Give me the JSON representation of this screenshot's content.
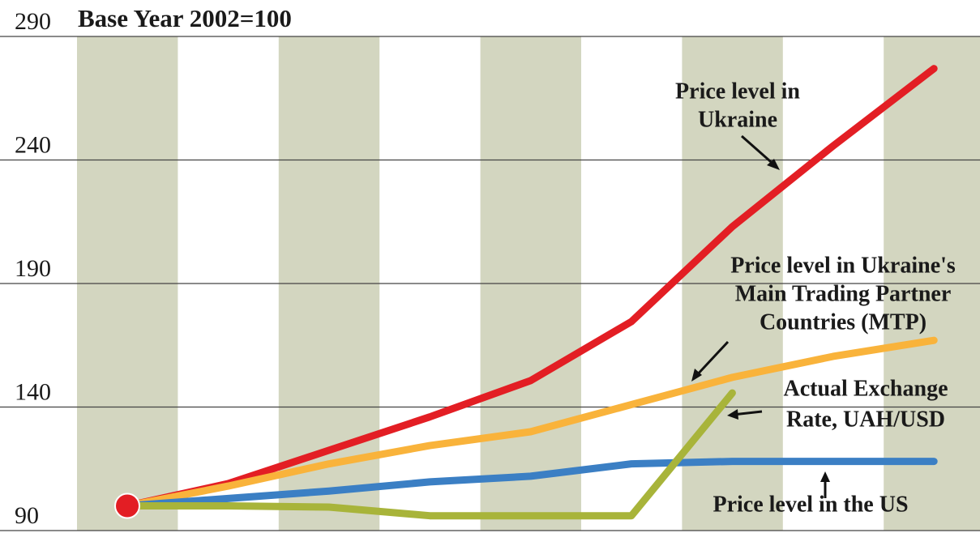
{
  "chart_data": {
    "type": "line",
    "title": "Base Year 2002=100",
    "categories": [
      null,
      null,
      null,
      null,
      null,
      null,
      null,
      null,
      null
    ],
    "series": [
      {
        "name": "Price level in Ukraine",
        "color": "#e31e24",
        "values": [
          100,
          109,
          122.5,
          136,
          150.7,
          174.6,
          213,
          245.7,
          277
        ]
      },
      {
        "name": "Price level in Ukraine's Main Trading Partner Countries (MTP)",
        "color": "#f9b33b",
        "values": [
          100,
          108,
          117,
          124.4,
          130,
          141,
          152,
          160.5,
          167
        ]
      },
      {
        "name": "Price level in the US",
        "color": "#3b7fc4",
        "values": [
          100,
          103,
          106,
          109.7,
          112,
          117,
          118,
          118,
          118
        ]
      },
      {
        "name": "Actual Exchange Rate, UAH/USD",
        "color": "#a8b43a",
        "values": [
          100,
          100,
          99.5,
          96,
          96,
          96,
          145.7,
          null,
          null
        ]
      }
    ],
    "annotations": [
      {
        "lines": [
          "Price level in",
          "Ukraine"
        ]
      },
      {
        "lines": [
          "Price level in Ukraine's",
          "Main Trading Partner",
          "Countries (MTP)"
        ]
      },
      {
        "lines": [
          "Actual Exchange",
          "Rate, UAH/USD"
        ]
      },
      {
        "lines": [
          "Price level in the US"
        ]
      }
    ],
    "ylim": [
      90,
      290
    ],
    "yticks": [
      90,
      140,
      190,
      240,
      290
    ],
    "grid": true
  }
}
